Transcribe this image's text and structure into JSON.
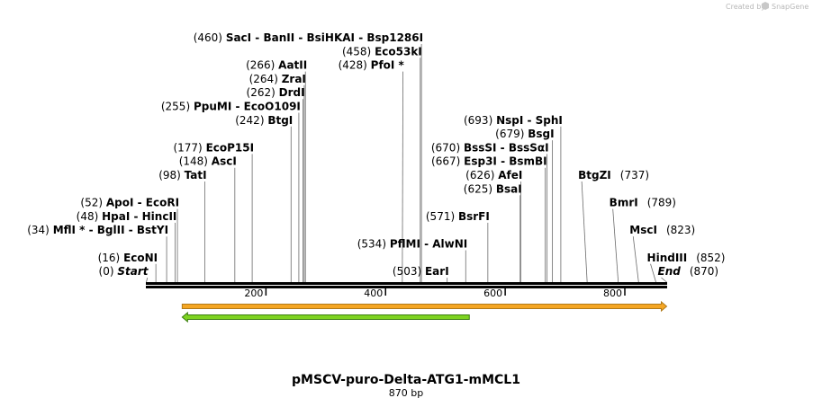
{
  "credit": {
    "text": "Created by",
    "brand": "SnapGene",
    "icon": "snapgene-logo-icon"
  },
  "map": {
    "title": "pMSCV-puro-Delta-ATG1-mMCL1",
    "subtitle": "870 bp",
    "length": 870,
    "ticks": [
      200,
      400,
      600,
      800
    ],
    "features": [
      {
        "start": 870,
        "end": 60,
        "direction": "forward",
        "color": "#f5a623",
        "outline": "#b07a1a"
      },
      {
        "start": 540,
        "end": 60,
        "direction": "reverse",
        "color": "#7ed321",
        "outline": "#3a7d0f"
      }
    ],
    "sites": [
      {
        "pos": 460,
        "text": "(460)",
        "names": "SacI  - BanII  - BsiHKAI  - Bsp1286I",
        "row": 0,
        "side": "left"
      },
      {
        "pos": 458,
        "text": "(458)",
        "names": "Eco53kI",
        "row": 1,
        "side": "left"
      },
      {
        "pos": 266,
        "text": "(266)",
        "names": "AatII",
        "row": 2,
        "side": "left"
      },
      {
        "pos": 428,
        "text": "(428)",
        "names": "PfoI *",
        "row": 2,
        "side": "left"
      },
      {
        "pos": 264,
        "text": "(264)",
        "names": "ZraI",
        "row": 3,
        "side": "left"
      },
      {
        "pos": 262,
        "text": "(262)",
        "names": "DrdI",
        "row": 4,
        "side": "left"
      },
      {
        "pos": 255,
        "text": "(255)",
        "names": "PpuMI  - EcoO109I",
        "row": 5,
        "side": "left"
      },
      {
        "pos": 242,
        "text": "(242)",
        "names": "BtgI",
        "row": 6,
        "side": "left"
      },
      {
        "pos": 693,
        "text": "(693)",
        "names": "NspI  - SphI",
        "row": 6,
        "side": "left"
      },
      {
        "pos": 679,
        "text": "(679)",
        "names": "BsgI",
        "row": 7,
        "side": "left"
      },
      {
        "pos": 177,
        "text": "(177)",
        "names": "EcoP15I",
        "row": 8,
        "side": "left"
      },
      {
        "pos": 670,
        "text": "(670)",
        "names": "BssSI  - BssSαI",
        "row": 8,
        "side": "left"
      },
      {
        "pos": 148,
        "text": "(148)",
        "names": "AscI",
        "row": 9,
        "side": "left"
      },
      {
        "pos": 667,
        "text": "(667)",
        "names": "Esp3I  - BsmBI",
        "row": 9,
        "side": "left"
      },
      {
        "pos": 98,
        "text": "(98)",
        "names": "TatI",
        "row": 10,
        "side": "left"
      },
      {
        "pos": 626,
        "text": "(626)",
        "names": "AfeI",
        "row": 10,
        "side": "left"
      },
      {
        "pos": 737,
        "text": "(737)",
        "names": "BtgZI",
        "row": 10,
        "side": "right"
      },
      {
        "pos": 625,
        "text": "(625)",
        "names": "BsaI",
        "row": 11,
        "side": "left"
      },
      {
        "pos": 52,
        "text": "(52)",
        "names": "ApoI  - EcoRI",
        "row": 12,
        "side": "left"
      },
      {
        "pos": 789,
        "text": "(789)",
        "names": "BmrI",
        "row": 12,
        "side": "right"
      },
      {
        "pos": 48,
        "text": "(48)",
        "names": "HpaI  - HincII",
        "row": 13,
        "side": "left"
      },
      {
        "pos": 571,
        "text": "(571)",
        "names": "BsrFI",
        "row": 13,
        "side": "left"
      },
      {
        "pos": 34,
        "text": "(34)",
        "names": "MflI * - BglII  - BstYI",
        "row": 14,
        "side": "left"
      },
      {
        "pos": 823,
        "text": "(823)",
        "names": "MscI",
        "row": 14,
        "side": "right"
      },
      {
        "pos": 534,
        "text": "(534)",
        "names": "PflMI  - AlwNI",
        "row": 15,
        "side": "left"
      },
      {
        "pos": 16,
        "text": "(16)",
        "names": "EcoNI",
        "row": 16,
        "side": "left"
      },
      {
        "pos": 852,
        "text": "(852)",
        "names": "HindIII",
        "row": 16,
        "side": "right"
      },
      {
        "pos": 0,
        "text": "(0)",
        "names": "Start",
        "row": 17,
        "side": "left",
        "italic": true
      },
      {
        "pos": 503,
        "text": "(503)",
        "names": "EarI",
        "row": 17,
        "side": "left"
      },
      {
        "pos": 870,
        "text": "(870)",
        "names": "End",
        "row": 17,
        "side": "right",
        "italic": true
      }
    ]
  }
}
